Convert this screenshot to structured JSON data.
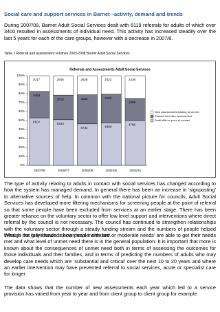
{
  "header": {
    "title": "Social care and support services in Barnet –activity, demand and trends"
  },
  "paragraphs": [
    "During 2007/08, Barnet Adult Social Services dealt with 6119 referrals for adults of which over 3400 resulted in assessments of individual need. This activity has increased steadily over the last 5 years for each of the care groups, however with a decrease in 2007/8.",
    "The type of activity relating to adults in contact with social services has changed according to how the system has managed demand. In general there has been an increase in ‘signposting’ to alternative sources of help. In common with the national picture for councils, Adult Social Services has developed more filtering mechanisms for screening people at the point of referral so that some people have been excluded from services at an earlier stage. There has been greater reliance on the voluntary sector to offer low level support and interventions where direct referral by the council is not necessary. The council has continued to strengthen relationships with the voluntary sector through a steady funding stream and the numbers of people helped through the grant funded sector have increased.",
    "What is not fully known is how people with ‘low or moderate needs’ are able to get their needs met and what level of unmet need there is in the general population. It is important that more is known about the consequences of unmet need both in terms of assessing the outcomes for those individuals and their families, and in terms of predicting the numbers of adults who may develop care needs which are ‘substantial and critical’ over the next 10 to 20 years and where an earlier intervention may have prevented referral to social services, acute or specialist care for longer.",
    "The data shows that the number of new assessments each year which led to a service provision has varied from year to year and from client group to client group for example"
  ],
  "caption": "Table 1 Referral and assessment volumes 2003-2008 Barnet Adult Social Services",
  "chart_data": {
    "type": "bar",
    "stacked": "percent",
    "title": "Referrals and Assessments Adult Social Services",
    "categories": [
      "2007/08",
      "2006/07",
      "2005/06",
      "2004/05",
      "2003/04"
    ],
    "series": [
      {
        "name": "New assessments leading to service",
        "color": "#ffffff",
        "values": [
          2017,
          2605,
          2626,
          2022,
          2436
        ]
      },
      {
        "name": "Passed for further assessment",
        "color": "#7a7a8c",
        "values": [
          3408,
          3315,
          4032,
          3183,
          2388
        ]
      },
      {
        "name": "Dealt With at point of contact",
        "color": "#c8c8dc",
        "values": [
          6119,
          6133,
          5734,
          4680,
          4786
        ]
      }
    ],
    "ylim": [
      0,
      100
    ],
    "yticks": [
      {
        "value": 0,
        "label": "0%"
      },
      {
        "value": 10,
        "label": "10%"
      },
      {
        "value": 20,
        "label": "20%"
      },
      {
        "value": 30,
        "label": "30%"
      },
      {
        "value": 40,
        "label": "40%"
      },
      {
        "value": 50,
        "label": "50%"
      },
      {
        "value": 60,
        "label": "60%"
      },
      {
        "value": 70,
        "label": "70%"
      },
      {
        "value": 80,
        "label": "80%"
      },
      {
        "value": 90,
        "label": "90%"
      },
      {
        "value": 100,
        "label": "100%"
      }
    ],
    "legend": "right"
  }
}
